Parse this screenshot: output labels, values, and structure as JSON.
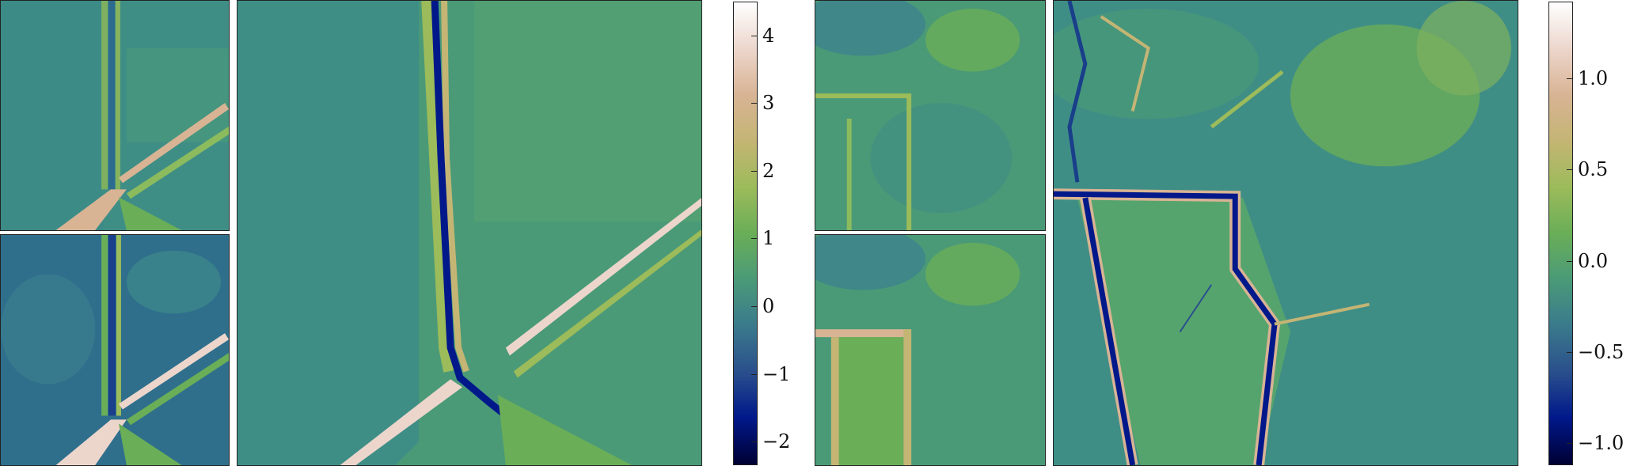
{
  "figure": {
    "colormap": [
      "#000033",
      "#00188a",
      "#2a4f8c",
      "#3a7a8c",
      "#4a9a78",
      "#6aae58",
      "#9cbb5a",
      "#c4b574",
      "#d8b494",
      "#ecd6cc",
      "#ffffff"
    ],
    "colorbar_left": {
      "ticks": [
        {
          "value": 4,
          "label": "4"
        },
        {
          "value": 3,
          "label": "3"
        },
        {
          "value": 2,
          "label": "2"
        },
        {
          "value": 1,
          "label": "1"
        },
        {
          "value": 0,
          "label": "0"
        },
        {
          "value": -1,
          "label": "−1"
        },
        {
          "value": -2,
          "label": "−2"
        }
      ],
      "range": [
        -2.35,
        4.5
      ]
    },
    "colorbar_right": {
      "ticks": [
        {
          "value": 1.0,
          "label": "1.0"
        },
        {
          "value": 0.5,
          "label": "0.5"
        },
        {
          "value": 0.0,
          "label": "0.0"
        },
        {
          "value": -0.5,
          "label": "−0.5"
        },
        {
          "value": -1.0,
          "label": "−1.0"
        }
      ],
      "range": [
        -1.12,
        1.42
      ]
    }
  }
}
